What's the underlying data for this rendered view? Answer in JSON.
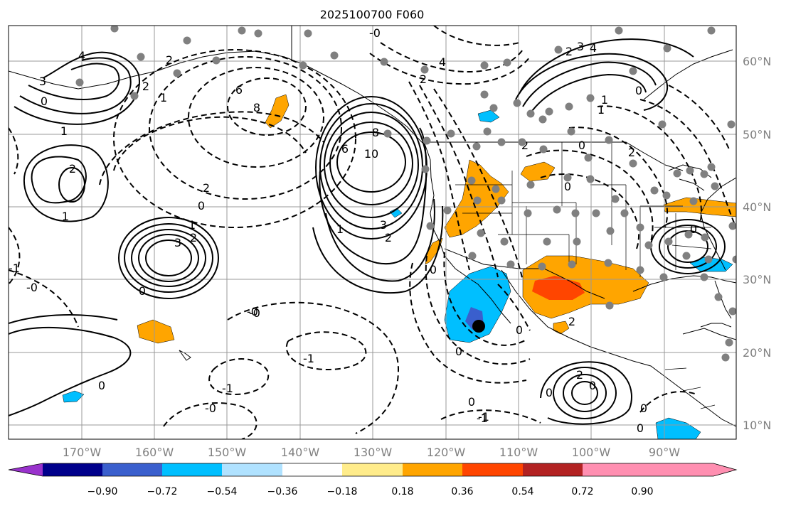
{
  "title": "2025100700 F060",
  "latitude_labels": [
    "60°N",
    "50°N",
    "40°N",
    "30°N",
    "20°N",
    "10°N"
  ],
  "longitude_labels": [
    "170°W",
    "160°W",
    "150°W",
    "140°W",
    "130°W",
    "120°W",
    "110°W",
    "100°W",
    "90°W"
  ],
  "colorbar": {
    "tick_labels": [
      "−0.90",
      "−0.72",
      "−0.54",
      "−0.36",
      "−0.18",
      "0.18",
      "0.36",
      "0.54",
      "0.72",
      "0.90"
    ],
    "colors": [
      "#9932cc",
      "#00008b",
      "#3a5fcd",
      "#00bfff",
      "#b0e2ff",
      "#ffffff",
      "#ffec8b",
      "#ffa500",
      "#ff4500",
      "#b22222",
      "#ff8fb1"
    ]
  },
  "contour_labels": [
    "4",
    "3",
    "2",
    "2",
    "1",
    "0",
    "1",
    "6",
    "8",
    "6",
    "10",
    "8",
    "4",
    "3",
    "2",
    "1",
    "2",
    "1",
    "2",
    "3",
    "0",
    "2",
    "1",
    "0",
    "0",
    "-1",
    "-0",
    "-1",
    "-1",
    "-0",
    "0",
    "-1",
    "-0",
    "0",
    "0",
    "-0",
    "2",
    "3",
    "4",
    "2",
    "1",
    "0",
    "0",
    "0",
    "2",
    "1",
    "2",
    "0",
    "2",
    "0",
    "2",
    "0",
    "0",
    "-1",
    "-0",
    "0",
    "0"
  ],
  "markers": {
    "station_dot_color": "#808080",
    "highlight_dot_color": "#000000"
  }
}
